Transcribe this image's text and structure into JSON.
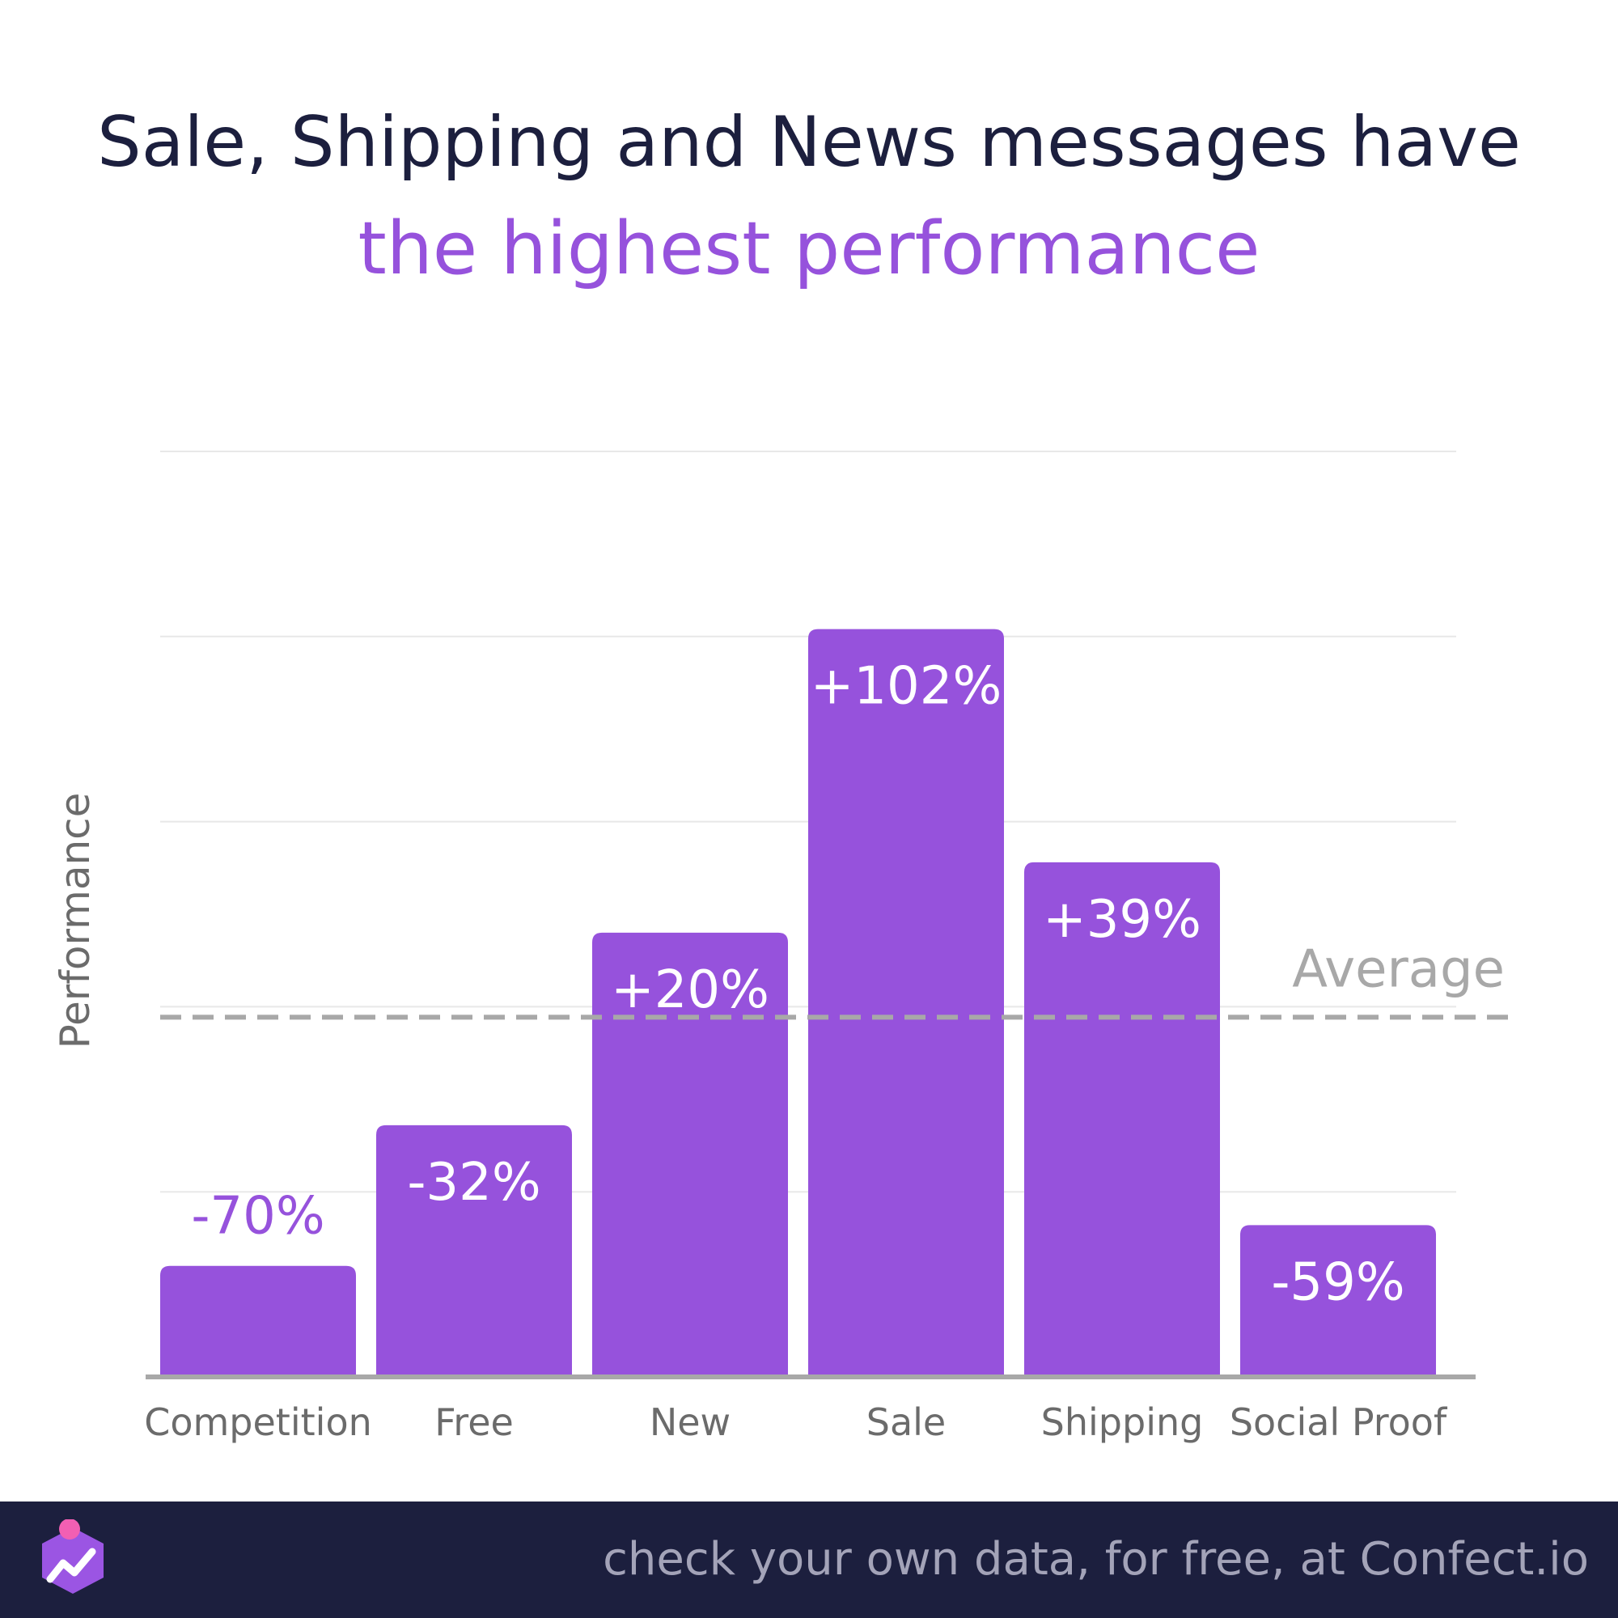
{
  "title": {
    "line1": "Sale, Shipping and News messages have",
    "line2": "the highest performance"
  },
  "colors": {
    "bar": "#9652dc",
    "title": "#1c1f3e",
    "accent": "#9652dc",
    "average_line": "#a8a8a8",
    "gridline": "#e8e8e8",
    "footer_bg": "#1c1f3e"
  },
  "chart_data": {
    "type": "bar",
    "categories": [
      "Competition",
      "Free",
      "New",
      "Sale",
      "Shipping",
      "Social Proof"
    ],
    "values": [
      -70,
      -32,
      20,
      102,
      39,
      -59
    ],
    "value_labels": [
      "-70%",
      "-32%",
      "+20%",
      "+102%",
      "+39%",
      "-59%"
    ],
    "ylabel": "Performance",
    "ylim": [
      -100,
      150
    ],
    "grid": true,
    "reference_line": {
      "label": "Average",
      "value": 0,
      "style": "dashed"
    }
  },
  "footer": {
    "text": "check your own data, for free, at Confect.io",
    "logo_icon": "confect-logo-icon"
  }
}
